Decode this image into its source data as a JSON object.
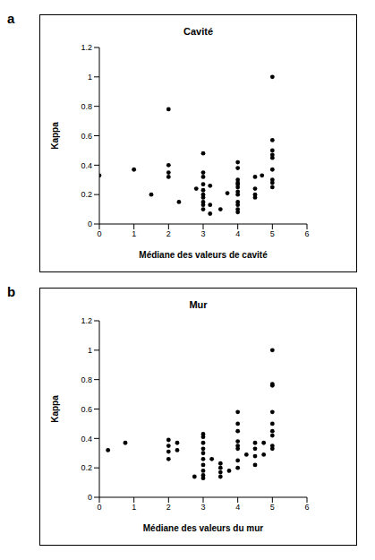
{
  "chart_data": [
    {
      "annotation": "a",
      "type": "scatter",
      "title": "Cavité",
      "xlabel": "Médiane des valeurs de cavité",
      "ylabel": "Kappa",
      "x": [
        0,
        1,
        1.5,
        2,
        2,
        2,
        2,
        2.3,
        2.8,
        3,
        3,
        3,
        3,
        3,
        3,
        3,
        3,
        3,
        3,
        3.2,
        3.2,
        3.2,
        3.5,
        3.7,
        4,
        4,
        4,
        4,
        4,
        4,
        4,
        4,
        4,
        4,
        4,
        4,
        4.5,
        4.5,
        4.5,
        4.5,
        4.7,
        5,
        5,
        5,
        5,
        5,
        5,
        5,
        5,
        5
      ],
      "values": [
        0.33,
        0.37,
        0.2,
        0.78,
        0.4,
        0.35,
        0.32,
        0.15,
        0.24,
        0.48,
        0.35,
        0.32,
        0.27,
        0.23,
        0.2,
        0.18,
        0.15,
        0.13,
        0.1,
        0.26,
        0.13,
        0.07,
        0.1,
        0.21,
        0.42,
        0.38,
        0.3,
        0.28,
        0.27,
        0.25,
        0.22,
        0.2,
        0.15,
        0.13,
        0.1,
        0.08,
        0.32,
        0.24,
        0.2,
        0.18,
        0.33,
        1.0,
        0.57,
        0.5,
        0.47,
        0.45,
        0.37,
        0.3,
        0.28,
        0.25
      ],
      "xlim": [
        0,
        6
      ],
      "xticks": [
        0,
        1,
        2,
        3,
        4,
        5,
        6
      ],
      "ylim": [
        0,
        1.2
      ],
      "yticks": [
        0,
        0.2,
        0.4,
        0.6,
        0.8,
        1,
        1.2
      ],
      "color": "#000000",
      "marker": "circle",
      "grid": false
    },
    {
      "annotation": "b",
      "type": "scatter",
      "title": "Mur",
      "xlabel": "Médiane des valeurs du mur",
      "ylabel": "Kappa",
      "x": [
        0.25,
        0.75,
        2,
        2,
        2,
        2,
        2.25,
        2.25,
        2.75,
        3,
        3,
        3,
        3,
        3,
        3,
        3,
        3,
        3,
        3,
        3.25,
        3.5,
        3.5,
        3.5,
        3.5,
        3.75,
        4,
        4,
        4,
        4,
        4,
        4,
        4,
        4,
        4.25,
        4.5,
        4.5,
        4.5,
        4.5,
        4.75,
        4.75,
        5,
        5,
        5,
        5,
        5,
        5,
        5,
        5,
        5
      ],
      "values": [
        0.32,
        0.37,
        0.39,
        0.35,
        0.31,
        0.26,
        0.37,
        0.32,
        0.14,
        0.43,
        0.41,
        0.37,
        0.33,
        0.3,
        0.26,
        0.22,
        0.18,
        0.15,
        0.13,
        0.26,
        0.23,
        0.2,
        0.17,
        0.14,
        0.18,
        0.58,
        0.5,
        0.45,
        0.38,
        0.35,
        0.33,
        0.25,
        0.2,
        0.29,
        0.37,
        0.33,
        0.28,
        0.22,
        0.37,
        0.29,
        1.0,
        0.77,
        0.76,
        0.58,
        0.5,
        0.45,
        0.42,
        0.35,
        0.33
      ],
      "xlim": [
        0,
        6
      ],
      "xticks": [
        0,
        1,
        2,
        3,
        4,
        5,
        6
      ],
      "ylim": [
        0,
        1.2
      ],
      "yticks": [
        0,
        0.2,
        0.4,
        0.6,
        0.8,
        1,
        1.2
      ],
      "color": "#000000",
      "marker": "circle",
      "grid": false
    }
  ]
}
